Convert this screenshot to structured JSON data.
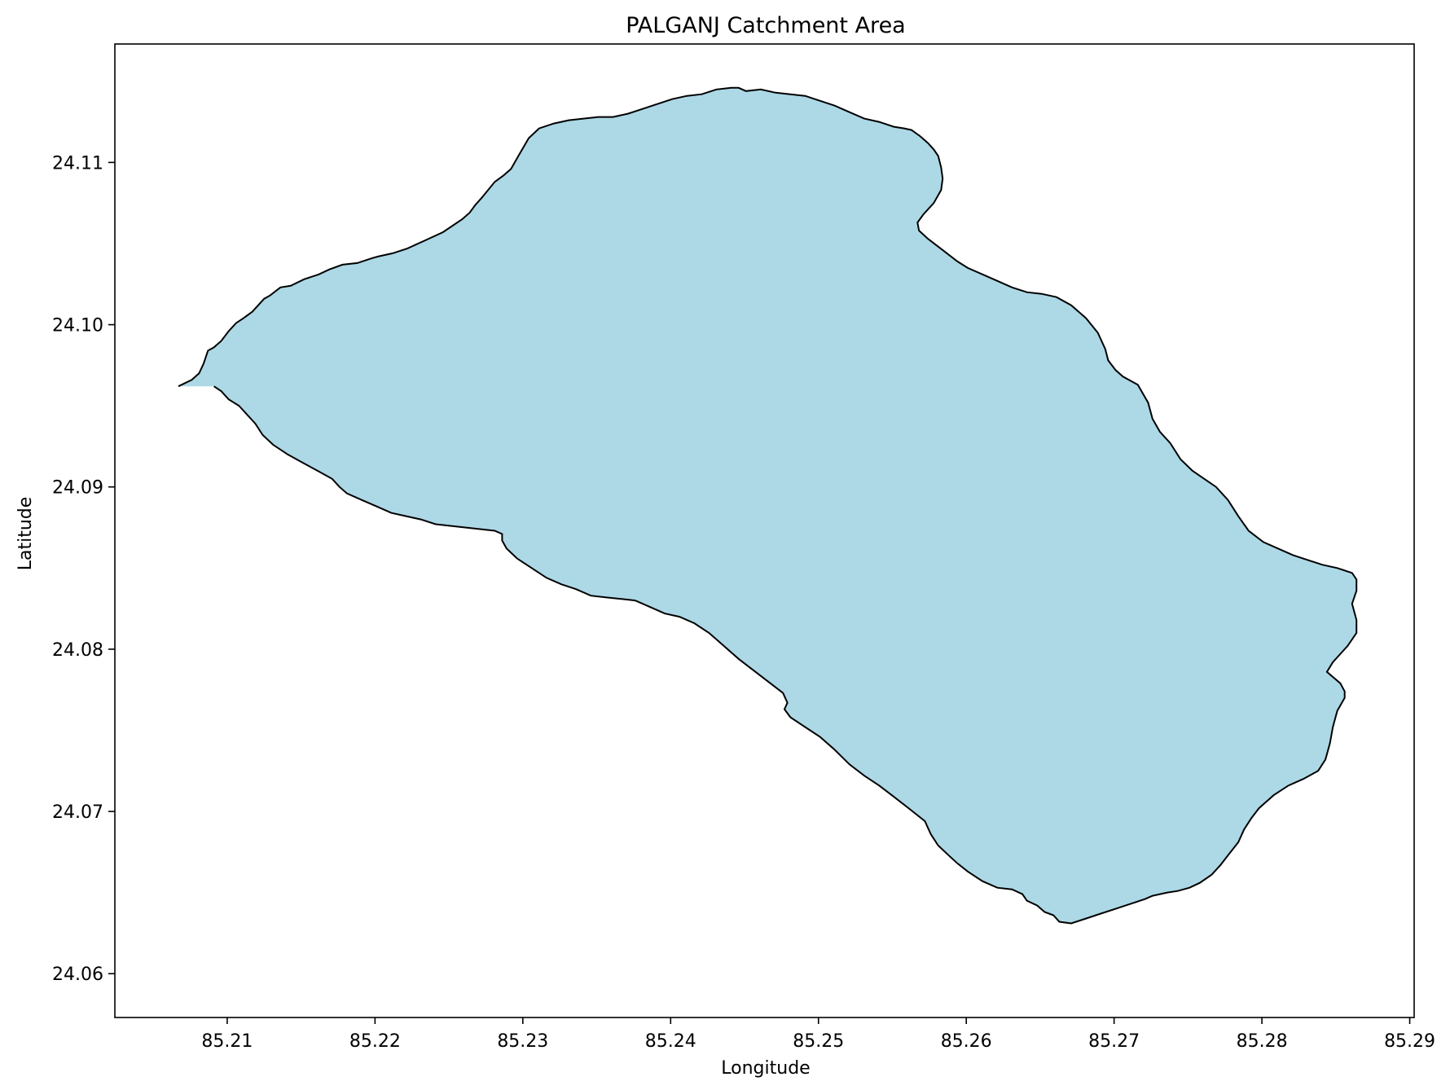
{
  "chart_data": {
    "type": "map",
    "title": "PALGANJ Catchment Area",
    "xlabel": "Longitude",
    "ylabel": "Latitude",
    "xlim": [
      85.2024,
      85.2903
    ],
    "ylim": [
      24.0573,
      24.1173
    ],
    "x_ticks": [
      85.21,
      85.22,
      85.23,
      85.24,
      85.25,
      85.26,
      85.27,
      85.28,
      85.29
    ],
    "x_tick_labels": [
      "85.21",
      "85.22",
      "85.23",
      "85.24",
      "85.25",
      "85.26",
      "85.27",
      "85.28",
      "85.29"
    ],
    "y_ticks": [
      24.06,
      24.07,
      24.08,
      24.09,
      24.1,
      24.11
    ],
    "y_tick_labels": [
      "24.06",
      "24.07",
      "24.08",
      "24.09",
      "24.10",
      "24.11"
    ],
    "grid": false,
    "colors": {
      "fill": "#add8e6",
      "outline": "#000000"
    },
    "polygon": {
      "name": "PALGANJ",
      "lon": [
        85.2067,
        85.2076,
        85.2081,
        85.2084,
        85.2087,
        85.2091,
        85.2096,
        85.2101,
        85.2106,
        85.2111,
        85.2117,
        85.2122,
        85.2125,
        85.2129,
        85.2136,
        85.2143,
        85.2152,
        85.2162,
        85.2169,
        85.2178,
        85.2188,
        85.2198,
        85.2202,
        85.2212,
        85.2222,
        85.2234,
        85.2246,
        85.2259,
        85.2264,
        85.2268,
        85.2272,
        85.2281,
        85.2287,
        85.2292,
        85.2297,
        85.2304,
        85.2311,
        85.2321,
        85.2331,
        85.2341,
        85.2351,
        85.2361,
        85.2371,
        85.2381,
        85.2391,
        85.2401,
        85.2411,
        85.2421,
        85.2431,
        85.2441,
        85.2446,
        85.2451,
        85.2461,
        85.2471,
        85.2481,
        85.2491,
        85.2501,
        85.2511,
        85.2521,
        85.2531,
        85.2541,
        85.2551,
        85.2558,
        85.2563,
        85.2569,
        85.2574,
        85.2578,
        85.2581,
        85.2583,
        85.2584,
        85.2583,
        85.2578,
        85.2571,
        85.2567,
        85.2568,
        85.2574,
        85.2584,
        85.2594,
        85.2601,
        85.2611,
        85.2621,
        85.2631,
        85.2641,
        85.2651,
        85.2661,
        85.2671,
        85.2681,
        85.2689,
        85.2694,
        85.2696,
        85.2701,
        85.2706,
        85.2716,
        85.2723,
        85.2726,
        85.2731,
        85.2738,
        85.2745,
        85.2753,
        85.2761,
        85.2769,
        85.2777,
        85.2784,
        85.2791,
        85.2801,
        85.2811,
        85.2821,
        85.2831,
        85.2841,
        85.2851,
        85.2861,
        85.2864,
        85.2864,
        85.2861,
        85.2864,
        85.2864,
        85.2858,
        85.2848,
        85.2844,
        85.2853,
        85.2856,
        85.2856,
        85.2851,
        85.2848,
        85.2846,
        85.2843,
        85.2838,
        85.2828,
        85.2818,
        85.2808,
        85.2798,
        85.2793,
        85.2788,
        85.2784,
        85.2778,
        85.2772,
        85.2766,
        85.2758,
        85.2751,
        85.2743,
        85.2736,
        85.2726,
        85.2721,
        85.2711,
        85.2701,
        85.2691,
        85.2681,
        85.2671,
        85.2663,
        85.2659,
        85.2653,
        85.2648,
        85.2641,
        85.2638,
        85.2631,
        85.2621,
        85.2611,
        85.2601,
        85.2594,
        85.2588,
        85.2581,
        85.2576,
        85.2572,
        85.2561,
        85.2551,
        85.2541,
        85.2531,
        85.2521,
        85.2511,
        85.2501,
        85.2491,
        85.2481,
        85.2477,
        85.2479,
        85.2476,
        85.2466,
        85.2456,
        85.2446,
        85.2436,
        85.2426,
        85.2416,
        85.2406,
        85.2396,
        85.2386,
        85.2376,
        85.2366,
        85.2356,
        85.2346,
        85.2336,
        85.2326,
        85.2316,
        85.2306,
        85.2296,
        85.2289,
        85.2286,
        85.2286,
        85.2281,
        85.2271,
        85.2261,
        85.2251,
        85.2241,
        85.2231,
        85.2221,
        85.2211,
        85.2201,
        85.2191,
        85.2181,
        85.2176,
        85.2171,
        85.2161,
        85.2151,
        85.2141,
        85.2131,
        85.2124,
        85.2119,
        85.2113,
        85.2108,
        85.2101,
        85.2096,
        85.2091,
        85.2086,
        85.2081,
        85.2076,
        85.2073,
        85.2067
      ],
      "lat": [
        24.0962,
        24.0966,
        24.097,
        24.0976,
        24.0984,
        24.0986,
        24.099,
        24.0996,
        24.1001,
        24.1004,
        24.1008,
        24.1013,
        24.1016,
        24.1018,
        24.1023,
        24.1024,
        24.1028,
        24.1031,
        24.1034,
        24.1037,
        24.1038,
        24.1041,
        24.1042,
        24.1044,
        24.1047,
        24.1052,
        24.1057,
        24.1065,
        24.1069,
        24.1074,
        24.1078,
        24.1088,
        24.1092,
        24.1096,
        24.1104,
        24.1115,
        24.1121,
        24.1124,
        24.1126,
        24.1127,
        24.1128,
        24.1128,
        24.113,
        24.1133,
        24.1136,
        24.1139,
        24.1141,
        24.1142,
        24.1145,
        24.1146,
        24.1146,
        24.1144,
        24.1145,
        24.1143,
        24.1142,
        24.1141,
        24.1138,
        24.1135,
        24.1131,
        24.1127,
        24.1125,
        24.1122,
        24.1121,
        24.112,
        24.1116,
        24.1112,
        24.1108,
        24.1104,
        24.1097,
        24.109,
        24.1083,
        24.1075,
        24.1068,
        24.1063,
        24.1058,
        24.1053,
        24.1046,
        24.1039,
        24.1035,
        24.1031,
        24.1027,
        24.1023,
        24.102,
        24.1019,
        24.1017,
        24.1012,
        24.1004,
        24.0995,
        24.0985,
        24.0978,
        24.0972,
        24.0968,
        24.0963,
        24.0952,
        24.0942,
        24.0934,
        24.0927,
        24.0917,
        24.091,
        24.0905,
        24.09,
        24.0892,
        24.0882,
        24.0873,
        24.0866,
        24.0862,
        24.0858,
        24.0855,
        24.0852,
        24.085,
        24.0847,
        24.0843,
        24.0836,
        24.0828,
        24.0818,
        24.081,
        24.0802,
        24.0792,
        24.0786,
        24.0779,
        24.0774,
        24.077,
        24.0762,
        24.0752,
        24.0742,
        24.0732,
        24.0725,
        24.072,
        24.0716,
        24.071,
        24.0702,
        24.0696,
        24.0689,
        24.0681,
        24.0674,
        24.0667,
        24.0661,
        24.0656,
        24.0653,
        24.0651,
        24.065,
        24.0648,
        24.0646,
        24.0643,
        24.064,
        24.0637,
        24.0634,
        24.0631,
        24.0632,
        24.0636,
        24.0638,
        24.0642,
        24.0645,
        24.0649,
        24.0652,
        24.0653,
        24.0657,
        24.0663,
        24.0668,
        24.0673,
        24.0679,
        24.0686,
        24.0694,
        24.0702,
        24.0709,
        24.0716,
        24.0722,
        24.0729,
        24.0738,
        24.0746,
        24.0752,
        24.0758,
        24.0763,
        24.0767,
        24.0773,
        24.078,
        24.0787,
        24.0794,
        24.0802,
        24.081,
        24.0816,
        24.082,
        24.0822,
        24.0826,
        24.083,
        24.0831,
        24.0832,
        24.0833,
        24.0837,
        24.084,
        24.0844,
        24.085,
        24.0856,
        24.0862,
        24.0867,
        24.0871,
        24.0873,
        24.0874,
        24.0875,
        24.0876,
        24.0877,
        24.088,
        24.0882,
        24.0884,
        24.0888,
        24.0892,
        24.0896,
        24.09,
        24.0905,
        24.091,
        24.0915,
        24.092,
        24.0926,
        24.0932,
        24.0939,
        24.0945,
        24.095,
        24.0954,
        24.0959,
        24.0962
      ]
    }
  }
}
